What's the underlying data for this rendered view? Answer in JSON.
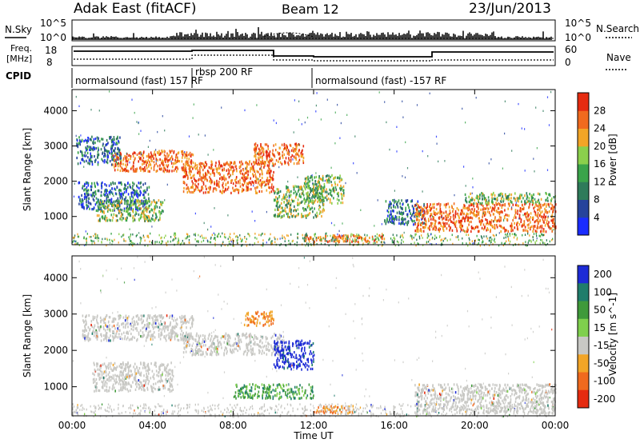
{
  "header": {
    "radar": "Adak East (fitACF)",
    "beam": "Beam 12",
    "date": "23/Jun/2013"
  },
  "top_panels": {
    "nsky_label": "N.Sky",
    "nsky_ticks": [
      "10^5",
      "10^0"
    ],
    "nsearch_label": "N.Search",
    "nsearch_ticks": [
      "10^5",
      "10^0"
    ],
    "freq_label_1": "Freq.",
    "freq_label_2": "[MHz]",
    "freq_ticks": [
      "18",
      "8"
    ],
    "nave_label": "Nave",
    "nave_ticks": [
      "60",
      "0"
    ],
    "cpid_label": "CPID",
    "cpid_segments": [
      "normalsound (fast) 157 RF",
      "rbsp 200 RF",
      "normalsound (fast) -157 RF"
    ]
  },
  "x_axis": {
    "label": "Time UT",
    "ticks": [
      "00:00",
      "04:00",
      "08:00",
      "12:00",
      "16:00",
      "20:00",
      "00:00"
    ]
  },
  "chart_data": [
    {
      "type": "heatmap",
      "title": "",
      "xlabel": "Time UT",
      "ylabel": "Slant Range [km]",
      "y_ticks": [
        1000,
        2000,
        3000,
        4000
      ],
      "ylim": [
        200,
        4600
      ],
      "colorbar_label": "Power [dB]",
      "colorbar_ticks": [
        4,
        8,
        12,
        16,
        20,
        24,
        28
      ],
      "colorbar_range": [
        0,
        30
      ],
      "colorbar_colors": [
        "#1a2cff",
        "#26439c",
        "#2e7b5a",
        "#3aa44a",
        "#8bd04c",
        "#f2a527",
        "#f06a1e",
        "#e52b10"
      ],
      "regions": [
        {
          "t": [
            0.2,
            2.4
          ],
          "r": [
            2500,
            3300
          ],
          "level": "low"
        },
        {
          "t": [
            0.3,
            3.8
          ],
          "r": [
            1200,
            2000
          ],
          "level": "low"
        },
        {
          "t": [
            1.2,
            4.5
          ],
          "r": [
            900,
            1500
          ],
          "level": "mid"
        },
        {
          "t": [
            2.0,
            6.0
          ],
          "r": [
            2300,
            2900
          ],
          "level": "high"
        },
        {
          "t": [
            5.5,
            10.0
          ],
          "r": [
            1700,
            2600
          ],
          "level": "high"
        },
        {
          "t": [
            9.0,
            11.5
          ],
          "r": [
            2500,
            3100
          ],
          "level": "high"
        },
        {
          "t": [
            10.0,
            12.5
          ],
          "r": [
            1000,
            1900
          ],
          "level": "mid"
        },
        {
          "t": [
            11.5,
            13.5
          ],
          "r": [
            1400,
            2200
          ],
          "level": "mid"
        },
        {
          "t": [
            11.5,
            15.5
          ],
          "r": [
            300,
            500
          ],
          "level": "high"
        },
        {
          "t": [
            15.5,
            17.5
          ],
          "r": [
            800,
            1500
          ],
          "level": "low"
        },
        {
          "t": [
            17.0,
            24.0
          ],
          "r": [
            600,
            1400
          ],
          "level": "high"
        },
        {
          "t": [
            19.5,
            24.0
          ],
          "r": [
            1400,
            1700
          ],
          "level": "mid"
        }
      ]
    },
    {
      "type": "heatmap",
      "title": "",
      "xlabel": "Time UT",
      "ylabel": "Slant Range [km]",
      "y_ticks": [
        1000,
        2000,
        3000,
        4000
      ],
      "ylim": [
        200,
        4600
      ],
      "colorbar_label": "Velocity [m s^-1]",
      "colorbar_ticks": [
        200,
        100,
        50,
        15,
        -15,
        -50,
        -100,
        -200
      ],
      "colorbar_colors": [
        "#1d2bd6",
        "#1f7d6b",
        "#3f9a3a",
        "#7fd04d",
        "#c8c8c4",
        "#f2a527",
        "#f06a1e",
        "#e52b10"
      ],
      "regions": [
        {
          "t": [
            0.5,
            6.0
          ],
          "r": [
            2300,
            3000
          ],
          "level": "ground"
        },
        {
          "t": [
            1.0,
            5.0
          ],
          "r": [
            900,
            1700
          ],
          "level": "ground"
        },
        {
          "t": [
            5.5,
            10.5
          ],
          "r": [
            1900,
            2500
          ],
          "level": "ground"
        },
        {
          "t": [
            8.5,
            10.0
          ],
          "r": [
            2700,
            3100
          ],
          "level": "neg"
        },
        {
          "t": [
            10.0,
            12.0
          ],
          "r": [
            1500,
            2300
          ],
          "level": "pos"
        },
        {
          "t": [
            8.0,
            12.0
          ],
          "r": [
            700,
            1100
          ],
          "level": "pos_small"
        },
        {
          "t": [
            12.0,
            14.0
          ],
          "r": [
            300,
            500
          ],
          "level": "neg"
        },
        {
          "t": [
            17.0,
            24.0
          ],
          "r": [
            300,
            1100
          ],
          "level": "ground"
        }
      ]
    }
  ]
}
